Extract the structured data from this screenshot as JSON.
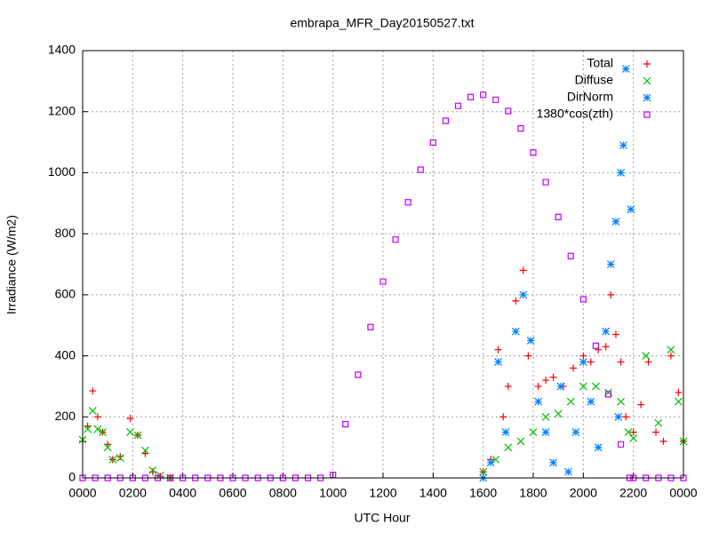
{
  "chart_data": {
    "type": "scatter",
    "title": "embrapa_MFR_Day20150527.txt",
    "x_label": "UTC Hour",
    "y_label": "Irradiance (W/m2)",
    "xlim": [
      0,
      24
    ],
    "ylim": [
      0,
      1400
    ],
    "xticks": [
      {
        "value": 0,
        "label": "0000"
      },
      {
        "value": 2,
        "label": "0200"
      },
      {
        "value": 4,
        "label": "0400"
      },
      {
        "value": 6,
        "label": "0600"
      },
      {
        "value": 8,
        "label": "0800"
      },
      {
        "value": 10,
        "label": "1000"
      },
      {
        "value": 12,
        "label": "1200"
      },
      {
        "value": 14,
        "label": "1400"
      },
      {
        "value": 16,
        "label": "1600"
      },
      {
        "value": 18,
        "label": "1800"
      },
      {
        "value": 20,
        "label": "2000"
      },
      {
        "value": 22,
        "label": "2200"
      },
      {
        "value": 24,
        "label": "0000"
      }
    ],
    "yticks": [
      0,
      200,
      400,
      600,
      800,
      1000,
      1200,
      1400
    ],
    "grid": true,
    "legend": "top-right",
    "series": [
      {
        "name": "Total",
        "color": "#ff0000",
        "marker": "plus",
        "x": [
          0,
          0.2,
          0.4,
          0.6,
          0.8,
          1.0,
          1.2,
          1.5,
          1.9,
          2.2,
          2.5,
          2.8,
          3.1,
          3.5,
          16.0,
          16.3,
          16.6,
          16.8,
          17.0,
          17.3,
          17.6,
          17.8,
          18.2,
          18.5,
          18.8,
          19.2,
          19.6,
          20.0,
          20.3,
          20.6,
          20.9,
          21.1,
          21.3,
          21.5,
          21.7,
          22.0,
          22.3,
          22.6,
          22.9,
          23.2,
          23.5,
          23.8,
          24.0
        ],
        "y": [
          120,
          170,
          285,
          200,
          150,
          110,
          60,
          70,
          195,
          140,
          80,
          20,
          5,
          0,
          20,
          60,
          420,
          200,
          300,
          580,
          680,
          400,
          300,
          320,
          330,
          300,
          360,
          400,
          380,
          420,
          430,
          600,
          470,
          380,
          200,
          150,
          240,
          380,
          150,
          120,
          400,
          280,
          120
        ]
      },
      {
        "name": "Diffuse",
        "color": "#00c000",
        "marker": "cross",
        "x": [
          0,
          0.2,
          0.4,
          0.6,
          0.8,
          1.0,
          1.2,
          1.5,
          1.9,
          2.2,
          2.5,
          2.8,
          3.1,
          3.5,
          16.0,
          16.5,
          17.0,
          17.5,
          18.0,
          18.5,
          19.0,
          19.5,
          20.0,
          20.5,
          21.0,
          21.5,
          21.8,
          22.0,
          22.5,
          23.0,
          23.5,
          23.8,
          24.0
        ],
        "y": [
          125,
          160,
          220,
          160,
          150,
          100,
          60,
          65,
          150,
          140,
          90,
          25,
          8,
          0,
          20,
          60,
          100,
          120,
          150,
          200,
          210,
          250,
          300,
          300,
          280,
          250,
          150,
          130,
          400,
          180,
          420,
          250,
          120
        ]
      },
      {
        "name": "DirNorm",
        "color": "#0080ff",
        "marker": "star",
        "x": [
          16.0,
          16.3,
          16.6,
          16.9,
          17.3,
          17.6,
          17.9,
          18.2,
          18.5,
          18.8,
          19.1,
          19.4,
          19.7,
          20.0,
          20.3,
          20.6,
          20.9,
          21.1,
          21.3,
          21.4,
          21.5,
          21.6,
          21.7,
          21.9
        ],
        "y": [
          0,
          50,
          380,
          150,
          480,
          600,
          450,
          250,
          150,
          50,
          300,
          20,
          150,
          380,
          250,
          100,
          480,
          700,
          840,
          200,
          1000,
          1090,
          1340,
          880
        ]
      },
      {
        "name": "1380*cos(zth)",
        "color": "#c000ff",
        "marker": "square",
        "x": [
          0,
          0.5,
          1,
          1.5,
          2,
          2.5,
          3,
          3.5,
          4,
          4.5,
          5,
          5.5,
          6,
          6.5,
          7,
          7.5,
          8,
          8.5,
          9,
          9.5,
          10,
          10.5,
          11,
          11.5,
          12,
          12.5,
          13,
          13.5,
          14,
          14.5,
          15,
          15.5,
          16,
          16.5,
          17,
          17.5,
          18,
          18.5,
          19,
          19.5,
          20,
          20.5,
          21,
          21.5,
          21.85,
          22,
          22.5,
          23,
          23.5,
          24
        ],
        "y": [
          0,
          0,
          0,
          0,
          0,
          0,
          0,
          0,
          0,
          0,
          0,
          0,
          0,
          0,
          0,
          0,
          0,
          0,
          0,
          0,
          10,
          176,
          338,
          494,
          643,
          781,
          903,
          1010,
          1099,
          1170,
          1219,
          1248,
          1255,
          1239,
          1202,
          1145,
          1066,
          969,
          855,
          727,
          585,
          433,
          274,
          110,
          0,
          0,
          0,
          0,
          0,
          0
        ]
      }
    ]
  }
}
